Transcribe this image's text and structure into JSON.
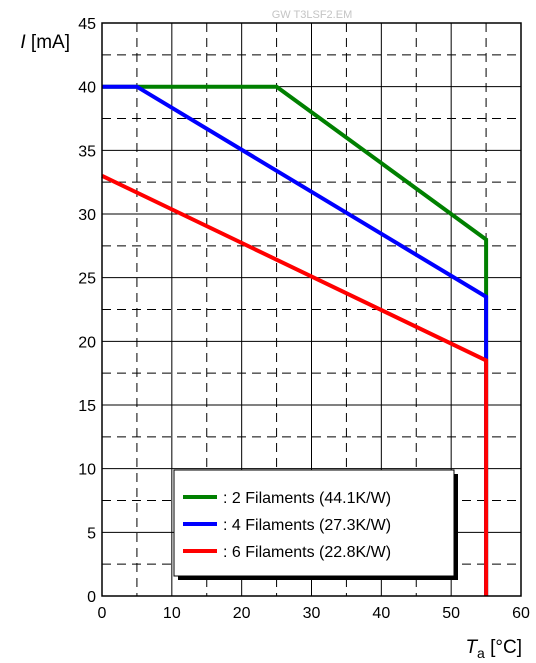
{
  "watermark": "GW T3LSF2.EM",
  "chart_data": {
    "type": "line",
    "ylabel": {
      "var": "I",
      "unit": " [mA]"
    },
    "xlabel": {
      "var": "T",
      "sub": "a",
      "unit": " [°C]"
    },
    "xlim": [
      0,
      60
    ],
    "ylim": [
      0,
      45
    ],
    "x_ticks": [
      0,
      10,
      20,
      30,
      40,
      50,
      60
    ],
    "y_ticks": [
      0,
      5,
      10,
      15,
      20,
      25,
      30,
      35,
      40,
      45
    ],
    "x_dashed_grid": [
      5,
      15,
      25,
      35,
      45,
      55
    ],
    "y_minor_grid": [
      2.5,
      7.5,
      12.5,
      17.5,
      22.5,
      27.5,
      32.5,
      37.5,
      42.5
    ],
    "grid": true,
    "legend_position": "bottom-center",
    "series": [
      {
        "name": ": 2 Filaments (44.1K/W)",
        "color": "#008000",
        "points": [
          [
            0,
            40
          ],
          [
            25,
            40
          ],
          [
            55,
            28
          ],
          [
            55,
            0
          ]
        ]
      },
      {
        "name": ": 4 Filaments (27.3K/W)",
        "color": "#0000ff",
        "points": [
          [
            0,
            40
          ],
          [
            5,
            40
          ],
          [
            55,
            23.5
          ],
          [
            55,
            0
          ]
        ]
      },
      {
        "name": ": 6 Filaments (22.8K/W)",
        "color": "#ff0000",
        "points": [
          [
            0,
            33
          ],
          [
            55,
            18.5
          ],
          [
            55,
            0
          ]
        ]
      }
    ]
  }
}
